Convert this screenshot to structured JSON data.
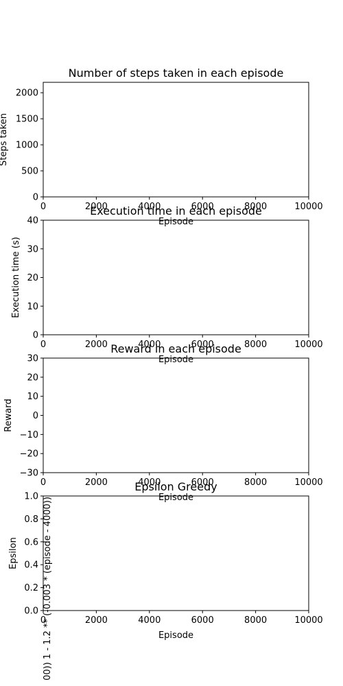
{
  "chart_data": [
    {
      "type": "line",
      "title": "Number of steps taken in each episode",
      "xlabel": "Episode",
      "ylabel": "Steps taken",
      "xlim": [
        0,
        10000
      ],
      "ylim": [
        0,
        2200
      ],
      "xticks": [
        "0",
        "2000",
        "4000",
        "6000",
        "8000",
        "10000"
      ],
      "yticks": [
        "0",
        "500",
        "1000",
        "1500",
        "2000"
      ],
      "series": []
    },
    {
      "type": "line",
      "title": "Execution time in each episode",
      "xlabel": "Episode",
      "ylabel": "Execution time (s)",
      "xlim": [
        0,
        10000
      ],
      "ylim": [
        0,
        40
      ],
      "xticks": [
        "0",
        "2000",
        "4000",
        "6000",
        "8000",
        "10000"
      ],
      "yticks": [
        "0",
        "10",
        "20",
        "30",
        "40"
      ],
      "series": []
    },
    {
      "type": "line",
      "title": "Reward in each episode",
      "xlabel": "Episode",
      "ylabel": "Reward",
      "xlim": [
        0,
        10000
      ],
      "ylim": [
        -30,
        30
      ],
      "xticks": [
        "0",
        "2000",
        "4000",
        "6000",
        "8000",
        "10000"
      ],
      "yticks": [
        "−30",
        "−20",
        "−10",
        "0",
        "10",
        "20",
        "30"
      ],
      "series": []
    },
    {
      "type": "line",
      "title": "Epsilon Greedy",
      "xlabel": "Episode",
      "ylabel": "Epsilon",
      "xlim": [
        0,
        10000
      ],
      "ylim": [
        0,
        1
      ],
      "xticks": [
        "0",
        "2000",
        "4000",
        "6000",
        "8000",
        "10000"
      ],
      "yticks": [
        "0.0",
        "0.2",
        "0.4",
        "0.6",
        "0.8",
        "1.0"
      ],
      "annotation": "00))  1 - 1.2 ** (-0.003 * (episode - 4000))",
      "series": []
    }
  ]
}
